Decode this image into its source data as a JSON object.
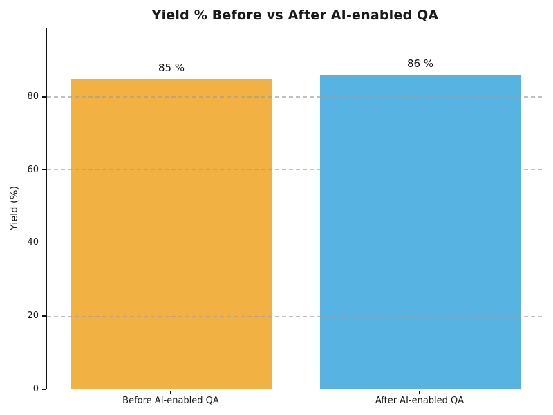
{
  "chart_data": {
    "type": "bar",
    "title": "Yield % Before vs After AI-enabled QA",
    "categories": [
      "Before AI-enabled QA",
      "After AI-enabled QA"
    ],
    "values": [
      85,
      86
    ],
    "bar_value_labels": [
      "85 %",
      "86 %"
    ],
    "bar_colors": [
      "#F1B243",
      "#57B3E1"
    ],
    "xlabel": "",
    "ylabel": "Yield (%)",
    "yticks": [
      0,
      20,
      40,
      60,
      80
    ],
    "ytick_labels": [
      "0",
      "20",
      "40",
      "60",
      "80"
    ],
    "ylim": [
      0,
      98.9
    ],
    "grid": {
      "axis": "y",
      "style": "dashed",
      "color": "#9e9e9e",
      "drawn_over_bars": true
    },
    "legend": "none",
    "spines": [
      "left",
      "bottom"
    ],
    "background": "#ffffff",
    "text_color": "#1a1a1a"
  }
}
